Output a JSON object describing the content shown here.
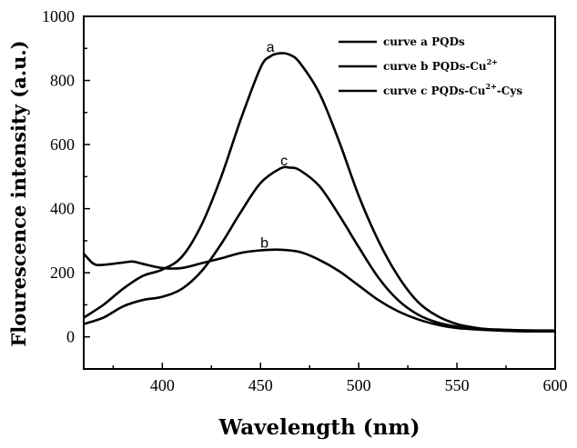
{
  "chart_data": {
    "type": "line",
    "xlabel": "Wavelength (nm)",
    "ylabel": "Flourescence intensity (a.u.)",
    "xlim": [
      360,
      600
    ],
    "ylim": [
      -100,
      1000
    ],
    "xticks": [
      400,
      450,
      500,
      550,
      600
    ],
    "yticks": [
      0,
      200,
      400,
      600,
      800,
      1000
    ],
    "legend_position": "top-right",
    "grid": false,
    "legend": [
      {
        "text": "curve a PQDs",
        "sup": "",
        "after": ""
      },
      {
        "text": "curve b PQDs-Cu",
        "sup": "2+",
        "after": ""
      },
      {
        "text": "curve c  PQDs-Cu",
        "sup": "2+",
        "after": "-Cys"
      }
    ],
    "series": [
      {
        "name": "curve a PQDs",
        "label": "a",
        "label_at": [
          455,
          890
        ],
        "color": "#000000",
        "x": [
          360,
          370,
          380,
          390,
          400,
          410,
          420,
          430,
          440,
          450,
          455,
          460,
          465,
          470,
          480,
          490,
          500,
          510,
          520,
          530,
          540,
          550,
          560,
          570,
          580,
          590,
          600
        ],
        "y": [
          60,
          100,
          150,
          190,
          210,
          250,
          350,
          500,
          680,
          840,
          875,
          885,
          880,
          855,
          760,
          610,
          440,
          300,
          190,
          110,
          65,
          40,
          28,
          22,
          20,
          18,
          18
        ]
      },
      {
        "name": "curve b PQDs-Cu2+",
        "label": "b",
        "label_at": [
          452,
          278
        ],
        "color": "#000000",
        "x": [
          360,
          365,
          370,
          380,
          385,
          390,
          400,
          410,
          420,
          430,
          440,
          450,
          460,
          470,
          480,
          490,
          500,
          510,
          520,
          530,
          540,
          550,
          560,
          570,
          580,
          590,
          600
        ],
        "y": [
          260,
          228,
          225,
          232,
          235,
          228,
          215,
          215,
          230,
          245,
          262,
          270,
          272,
          265,
          240,
          205,
          160,
          115,
          80,
          55,
          38,
          28,
          23,
          20,
          18,
          17,
          17
        ]
      },
      {
        "name": "curve c PQDs-Cu2+-Cys",
        "label": "c",
        "label_at": [
          462,
          535
        ],
        "color": "#000000",
        "x": [
          360,
          370,
          380,
          390,
          400,
          410,
          420,
          430,
          440,
          450,
          460,
          465,
          470,
          480,
          490,
          500,
          510,
          520,
          530,
          540,
          550,
          560,
          570,
          580,
          590,
          600
        ],
        "y": [
          40,
          60,
          95,
          115,
          125,
          150,
          205,
          290,
          390,
          480,
          525,
          528,
          520,
          470,
          380,
          280,
          185,
          115,
          70,
          45,
          32,
          26,
          23,
          21,
          20,
          20
        ]
      }
    ]
  }
}
